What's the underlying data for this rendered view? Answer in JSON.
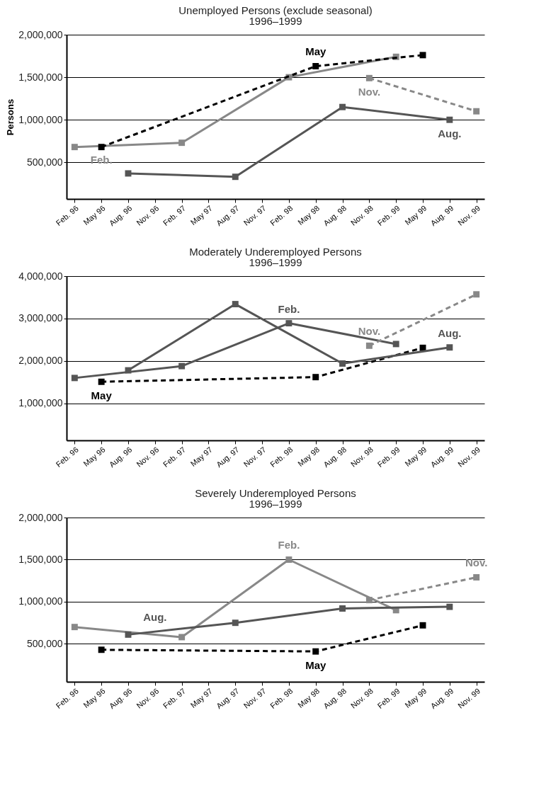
{
  "chart_data": [
    {
      "type": "line",
      "title": "Unemployed Persons (exclude seasonal)",
      "subtitle": "1996–1999",
      "ylabel": "Persons",
      "categories": [
        "Feb. 96",
        "May 96",
        "Aug. 96",
        "Nov. 96",
        "Feb. 97",
        "May 97",
        "Aug. 97",
        "Nov. 97",
        "Feb. 98",
        "May 98",
        "Aug. 98",
        "Nov. 98",
        "Feb. 99",
        "May 99",
        "Aug. 99",
        "Nov. 99"
      ],
      "ylim": [
        70000,
        2000000
      ],
      "yticks": [
        {
          "value": 500000,
          "label": "500,000"
        },
        {
          "value": 1000000,
          "label": "1,000,000"
        },
        {
          "value": 1500000,
          "label": "1,500,000"
        },
        {
          "value": 2000000,
          "label": "2,000,000"
        }
      ],
      "grid": "y",
      "marker": "square",
      "series": [
        {
          "name": "Feb.",
          "color": "#888888",
          "line_style": "solid",
          "values": [
            680000,
            null,
            null,
            null,
            730000,
            null,
            null,
            null,
            1500000,
            null,
            null,
            null,
            1740000,
            null,
            null,
            null
          ]
        },
        {
          "name": "May",
          "color": "#000000",
          "line_style": "dashed",
          "values": [
            null,
            680000,
            null,
            null,
            null,
            null,
            null,
            null,
            null,
            1630000,
            null,
            null,
            null,
            1760000,
            null,
            null
          ]
        },
        {
          "name": "Aug.",
          "color": "#555555",
          "line_style": "solid",
          "values": [
            null,
            null,
            370000,
            null,
            null,
            null,
            330000,
            null,
            null,
            null,
            1150000,
            null,
            null,
            null,
            1000000,
            null
          ]
        },
        {
          "name": "Nov.",
          "color": "#888888",
          "line_style": "dashed",
          "values": [
            null,
            null,
            null,
            null,
            null,
            null,
            null,
            null,
            null,
            null,
            null,
            1490000,
            null,
            null,
            null,
            1100000
          ]
        }
      ]
    },
    {
      "type": "line",
      "title": "Moderately Underemployed Persons",
      "subtitle": "1996–1999",
      "categories": [
        "Feb. 96",
        "May 96",
        "Aug. 96",
        "Nov. 96",
        "Feb. 97",
        "May 97",
        "Aug. 97",
        "Nov. 97",
        "Feb. 98",
        "May 98",
        "Aug. 98",
        "Nov. 98",
        "Feb. 99",
        "May 99",
        "Aug. 99",
        "Nov. 99"
      ],
      "ylim": [
        130000,
        4000000
      ],
      "yticks": [
        {
          "value": 1000000,
          "label": "1,000,000"
        },
        {
          "value": 2000000,
          "label": "2,000,000"
        },
        {
          "value": 3000000,
          "label": "3,000,000"
        },
        {
          "value": 4000000,
          "label": "4,000,000"
        }
      ],
      "grid": "y",
      "marker": "square",
      "series": [
        {
          "name": "Feb.",
          "color": "#555555",
          "line_style": "solid",
          "values": [
            1600000,
            null,
            null,
            null,
            1880000,
            null,
            null,
            null,
            2890000,
            null,
            null,
            null,
            2400000,
            null,
            null,
            null
          ]
        },
        {
          "name": "May",
          "color": "#000000",
          "line_style": "dashed",
          "values": [
            null,
            1510000,
            null,
            null,
            null,
            null,
            null,
            null,
            null,
            1620000,
            null,
            null,
            null,
            2310000,
            null,
            null
          ]
        },
        {
          "name": "Aug.",
          "color": "#555555",
          "line_style": "solid",
          "values": [
            null,
            null,
            1780000,
            null,
            null,
            null,
            3340000,
            null,
            null,
            null,
            1940000,
            null,
            null,
            null,
            2320000,
            null
          ]
        },
        {
          "name": "Nov.",
          "color": "#888888",
          "line_style": "dashed",
          "values": [
            null,
            null,
            null,
            null,
            null,
            null,
            null,
            null,
            null,
            null,
            null,
            2360000,
            null,
            null,
            null,
            3570000
          ]
        }
      ]
    },
    {
      "type": "line",
      "title": "Severely Underemployed Persons",
      "subtitle": "1996–1999",
      "categories": [
        "Feb. 96",
        "May 96",
        "Aug. 96",
        "Nov. 96",
        "Feb. 97",
        "May 97",
        "Aug. 97",
        "Nov. 97",
        "Feb. 98",
        "May 98",
        "Aug. 98",
        "Nov. 98",
        "Feb. 99",
        "May 99",
        "Aug. 99",
        "Nov. 99"
      ],
      "ylim": [
        50000,
        2000000
      ],
      "yticks": [
        {
          "value": 500000,
          "label": "500,000"
        },
        {
          "value": 1000000,
          "label": "1,000,000"
        },
        {
          "value": 1500000,
          "label": "1,500,000"
        },
        {
          "value": 2000000,
          "label": "2,000,000"
        }
      ],
      "grid": "y",
      "marker": "square",
      "series": [
        {
          "name": "Feb.",
          "color": "#888888",
          "line_style": "solid",
          "values": [
            700000,
            null,
            null,
            null,
            580000,
            null,
            null,
            null,
            1500000,
            null,
            null,
            null,
            900000,
            null,
            null,
            null
          ]
        },
        {
          "name": "May",
          "color": "#000000",
          "line_style": "dashed",
          "values": [
            null,
            430000,
            null,
            null,
            null,
            null,
            null,
            null,
            null,
            410000,
            null,
            null,
            null,
            720000,
            null,
            null
          ]
        },
        {
          "name": "Aug.",
          "color": "#555555",
          "line_style": "solid",
          "values": [
            null,
            null,
            610000,
            null,
            null,
            null,
            750000,
            null,
            null,
            null,
            920000,
            null,
            null,
            null,
            940000,
            null
          ]
        },
        {
          "name": "Nov.",
          "color": "#888888",
          "line_style": "dashed",
          "values": [
            null,
            null,
            null,
            null,
            null,
            null,
            null,
            null,
            null,
            null,
            null,
            1020000,
            null,
            null,
            null,
            1290000
          ]
        }
      ]
    }
  ]
}
